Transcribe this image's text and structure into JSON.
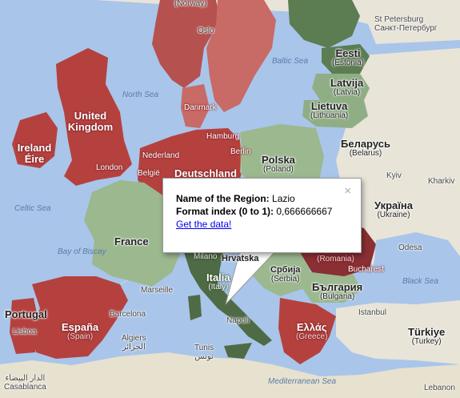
{
  "map": {
    "countries": [
      {
        "id": "norway",
        "label": "(Norway)",
        "color": "#b5514f"
      },
      {
        "id": "sweden",
        "label": "",
        "color": "#c86a66"
      },
      {
        "id": "finland",
        "label": "",
        "color": "#5c7c52"
      },
      {
        "id": "estonia",
        "label": "Eesti",
        "sub": "(Estonia)",
        "color": "#5c7c52"
      },
      {
        "id": "latvia",
        "label": "Latvija",
        "sub": "(Latvia)",
        "color": "#8fae86"
      },
      {
        "id": "lithuania",
        "label": "Lietuva",
        "sub": "(Lithuania)",
        "color": "#8fae86"
      },
      {
        "id": "uk",
        "label": "United Kingdom",
        "color": "#b5413f"
      },
      {
        "id": "ireland",
        "label": "Ireland Éire",
        "color": "#b5413f"
      },
      {
        "id": "germany",
        "label": "Deutschland",
        "color": "#b5413f"
      },
      {
        "id": "poland",
        "label": "Polska",
        "sub": "(Poland)",
        "color": "#9bb88f"
      },
      {
        "id": "france",
        "label": "France",
        "color": "#9bb88f"
      },
      {
        "id": "spain",
        "label": "España",
        "sub": "(Spain)",
        "color": "#b5413f"
      },
      {
        "id": "portugal",
        "label": "Portugal",
        "color": "#b5413f"
      },
      {
        "id": "italy",
        "label": "Italia",
        "sub": "(Italy)",
        "color": "#4f6b45"
      },
      {
        "id": "greece",
        "label": "Ελλάς",
        "sub": "(Greece)",
        "color": "#b5413f"
      },
      {
        "id": "romania",
        "label": "România",
        "sub": "(Romania)",
        "color": "#8a2f33"
      },
      {
        "id": "bulgaria",
        "label": "България",
        "sub": "(Bulgaria)",
        "color": "#9bb88f"
      },
      {
        "id": "serbia",
        "label": "Србија",
        "sub": "(Serbia)",
        "color": "#9bb88f"
      },
      {
        "id": "croatia",
        "label": "Hrvatska",
        "color": "#9bb88f"
      },
      {
        "id": "belarus",
        "label": "Беларусь",
        "sub": "(Belarus)",
        "color": "#e8e4d8"
      },
      {
        "id": "ukraine",
        "label": "Україна",
        "sub": "(Ukraine)",
        "color": "#e8e4d8"
      },
      {
        "id": "turkey",
        "label": "Türkiye",
        "sub": "(Turkey)",
        "color": "#e8e4d8"
      }
    ],
    "seas": [
      "North Sea",
      "Baltic Sea",
      "Celtic Sea",
      "Bay of Biscay",
      "Black Sea",
      "Mediterranean Sea"
    ],
    "cities": [
      "Oslo",
      "St Petersburg",
      "Санкт-Петербург",
      "Hamburg",
      "Berlin",
      "London",
      "Kyiv",
      "Kharkiv",
      "Odesa",
      "Bucharest",
      "Barcelona",
      "Marseille",
      "Milano",
      "Napoli",
      "Istanbul",
      "Tunis",
      "تونس",
      "Casablanca",
      "الدار البيضاء",
      "Lisboa",
      "Nederland",
      "België",
      "Danmark",
      "Algiers",
      "الجزائر",
      "Lebanon"
    ],
    "clipped_labels": [
      "Helsinki",
      "Tallinn"
    ]
  },
  "popup": {
    "region_label": "Name of the Region:",
    "region_value": "Lazio",
    "index_label": "Format index (0 to 1):",
    "index_value": "0,666666667",
    "link_text": "Get the data!",
    "close_glyph": "×"
  }
}
